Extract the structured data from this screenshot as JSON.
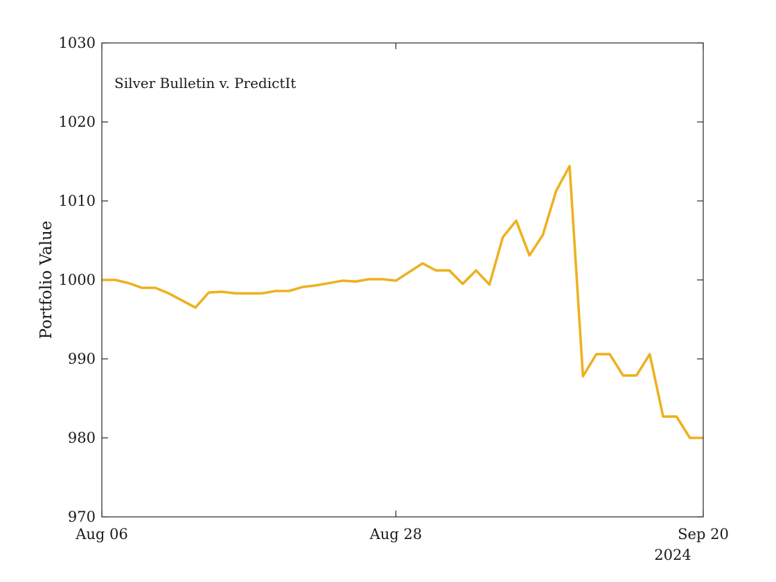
{
  "chart_data": {
    "type": "line",
    "title": "",
    "annotation": "Silver Bulletin v. PredictIt",
    "xlabel": "",
    "ylabel": "Portfolio Value",
    "xlim": [
      "2024-08-06",
      "2024-09-20"
    ],
    "ylim": [
      970,
      1030
    ],
    "x_ticks": [
      {
        "date": "2024-08-06",
        "label": "Aug 06"
      },
      {
        "date": "2024-08-28",
        "label": "Aug 28"
      },
      {
        "date": "2024-09-20",
        "label": "Sep 20"
      }
    ],
    "x_year_label": "2024",
    "y_ticks": [
      970,
      980,
      990,
      1000,
      1010,
      1020,
      1030
    ],
    "grid": false,
    "color": "#EDB120",
    "series": [
      {
        "x": [
          "2024-08-06",
          "2024-08-07",
          "2024-08-08",
          "2024-08-09",
          "2024-08-10",
          "2024-08-11",
          "2024-08-12",
          "2024-08-13",
          "2024-08-14",
          "2024-08-15",
          "2024-08-16",
          "2024-08-17",
          "2024-08-18",
          "2024-08-19",
          "2024-08-20",
          "2024-08-21",
          "2024-08-22",
          "2024-08-23",
          "2024-08-24",
          "2024-08-25",
          "2024-08-26",
          "2024-08-27",
          "2024-08-28",
          "2024-08-29",
          "2024-08-30",
          "2024-08-31",
          "2024-09-01",
          "2024-09-02",
          "2024-09-03",
          "2024-09-04",
          "2024-09-05",
          "2024-09-06",
          "2024-09-07",
          "2024-09-08",
          "2024-09-09",
          "2024-09-10",
          "2024-09-11",
          "2024-09-12",
          "2024-09-13",
          "2024-09-14",
          "2024-09-15",
          "2024-09-16",
          "2024-09-17",
          "2024-09-18",
          "2024-09-19",
          "2024-09-20"
        ],
        "y": [
          1000.0,
          1000.0,
          999.6,
          999.0,
          999.0,
          998.3,
          997.4,
          996.5,
          998.4,
          998.5,
          998.3,
          998.3,
          998.3,
          998.6,
          998.6,
          999.1,
          999.3,
          999.6,
          999.9,
          999.8,
          1000.1,
          1000.1,
          999.9,
          1001.0,
          1002.1,
          1001.2,
          1001.2,
          999.5,
          1001.2,
          999.4,
          1005.4,
          1007.5,
          1003.1,
          1005.7,
          1011.3,
          1014.4,
          987.8,
          990.6,
          990.6,
          987.9,
          987.9,
          990.6,
          982.7,
          982.7,
          980.0,
          980.0
        ]
      }
    ]
  }
}
